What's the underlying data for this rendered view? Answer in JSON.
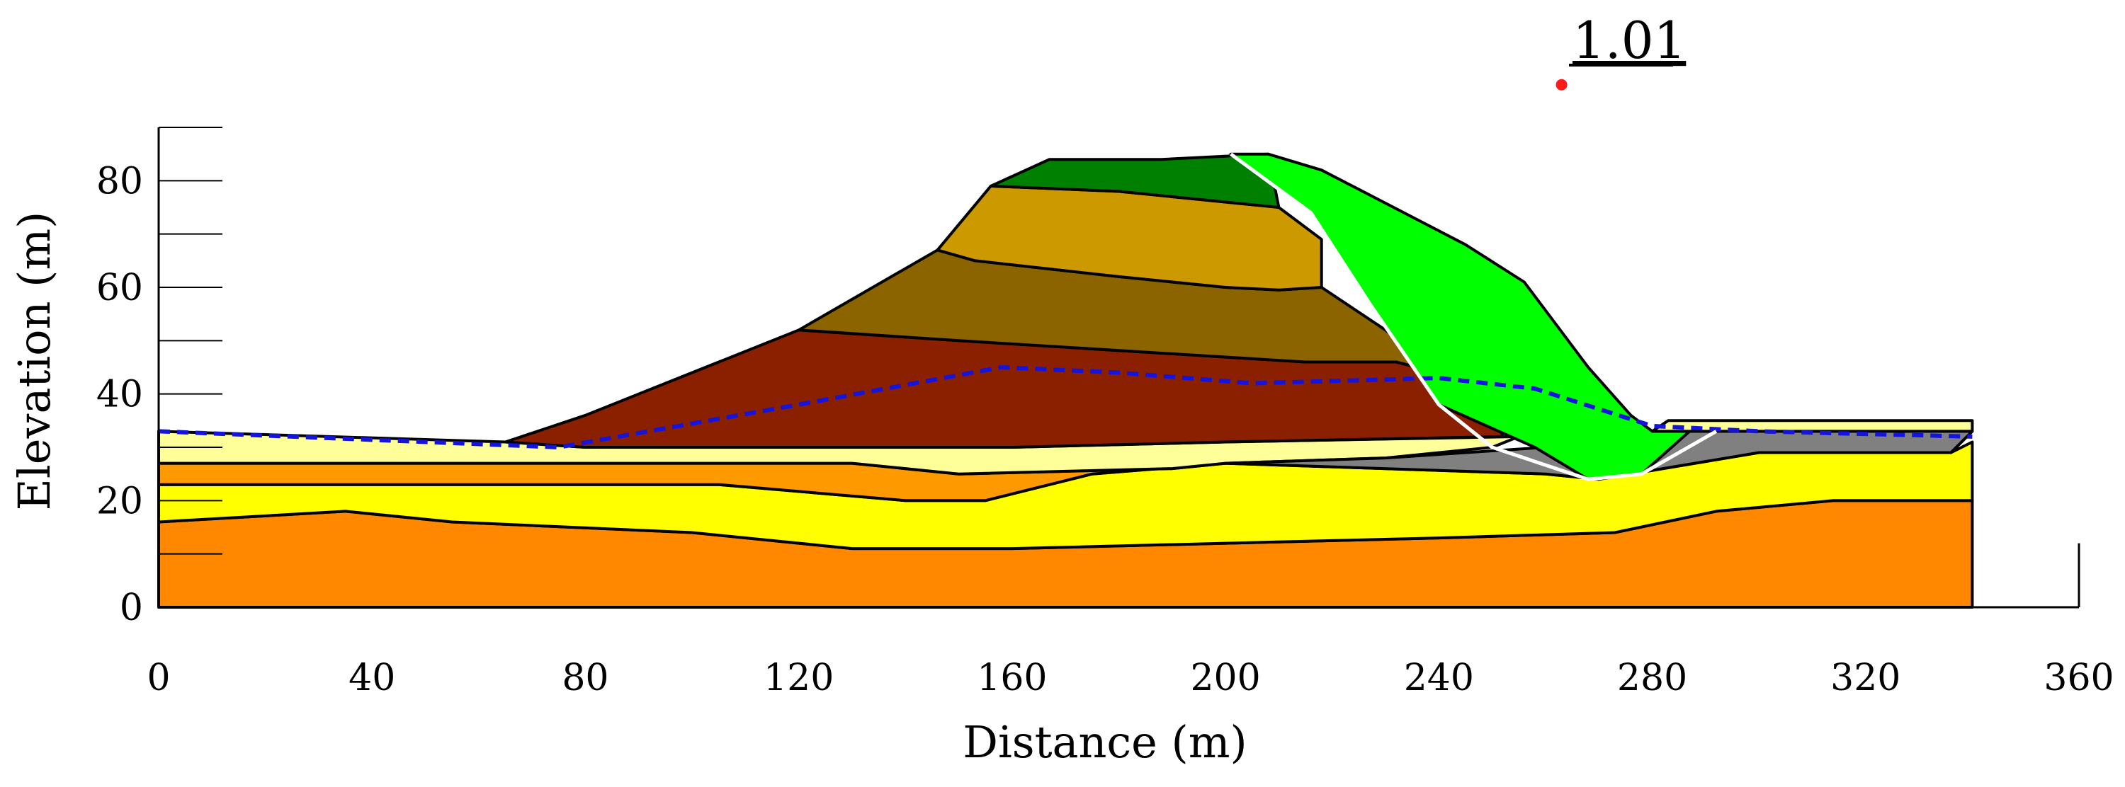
{
  "chart_data": {
    "type": "cross-section",
    "xlabel": "Distance (m)",
    "ylabel": "Elevation (m)",
    "xlim": [
      0,
      360
    ],
    "ylim": [
      0,
      90
    ],
    "x_ticks": [
      0,
      40,
      80,
      120,
      160,
      200,
      240,
      280,
      320,
      360
    ],
    "y_ticks": [
      0,
      20,
      40,
      60,
      80
    ],
    "factor_of_safety": {
      "label": "1.01",
      "center": [
        263,
        98
      ],
      "color": "#ff1a1a"
    },
    "layers": [
      {
        "name": "foundation-bottom",
        "color": "#ff8800",
        "points": [
          [
            0,
            0
          ],
          [
            340,
            0
          ],
          [
            340,
            20
          ],
          [
            314,
            20
          ],
          [
            292,
            18
          ],
          [
            273,
            14
          ],
          [
            240,
            13
          ],
          [
            200,
            12
          ],
          [
            160,
            11
          ],
          [
            130,
            11
          ],
          [
            100,
            14
          ],
          [
            55,
            16
          ],
          [
            35,
            18
          ],
          [
            0,
            16
          ]
        ]
      },
      {
        "name": "yellow",
        "color": "#ffff00",
        "points": [
          [
            0,
            16
          ],
          [
            35,
            18
          ],
          [
            55,
            16
          ],
          [
            100,
            14
          ],
          [
            130,
            11
          ],
          [
            160,
            11
          ],
          [
            200,
            12
          ],
          [
            240,
            13
          ],
          [
            273,
            14
          ],
          [
            292,
            18
          ],
          [
            314,
            20
          ],
          [
            340,
            20
          ],
          [
            340,
            31
          ],
          [
            336,
            29
          ],
          [
            300,
            29
          ],
          [
            270,
            24
          ],
          [
            260,
            25
          ],
          [
            200,
            27
          ],
          [
            175,
            25
          ],
          [
            155,
            20
          ],
          [
            140,
            20
          ],
          [
            105,
            23
          ],
          [
            0,
            23
          ]
        ]
      },
      {
        "name": "orange-lens",
        "color": "#ff9900",
        "points": [
          [
            0,
            23
          ],
          [
            105,
            23
          ],
          [
            140,
            20
          ],
          [
            155,
            20
          ],
          [
            175,
            25
          ],
          [
            200,
            27
          ],
          [
            190,
            26
          ],
          [
            150,
            25
          ],
          [
            130,
            27
          ],
          [
            0,
            27
          ]
        ]
      },
      {
        "name": "light-yellow",
        "color": "#ffff99",
        "points": [
          [
            0,
            27
          ],
          [
            130,
            27
          ],
          [
            150,
            25
          ],
          [
            190,
            26
          ],
          [
            200,
            27
          ],
          [
            230,
            28
          ],
          [
            250,
            30
          ],
          [
            255,
            32
          ],
          [
            200,
            31
          ],
          [
            160,
            30
          ],
          [
            120,
            30
          ],
          [
            80,
            30
          ],
          [
            65,
            31
          ],
          [
            0,
            33
          ]
        ]
      },
      {
        "name": "gray-lens",
        "color": "#808080",
        "points": [
          [
            200,
            27
          ],
          [
            230,
            28
          ],
          [
            260,
            30
          ],
          [
            287,
            33
          ],
          [
            300,
            33
          ],
          [
            340,
            33
          ],
          [
            336,
            29
          ],
          [
            300,
            29
          ],
          [
            270,
            24
          ],
          [
            260,
            25
          ]
        ]
      },
      {
        "name": "red-brown",
        "color": "#8b2000",
        "points": [
          [
            65,
            31
          ],
          [
            80,
            36
          ],
          [
            120,
            52
          ],
          [
            150,
            50
          ],
          [
            215,
            46
          ],
          [
            232,
            46
          ],
          [
            248,
            42
          ],
          [
            252,
            32
          ],
          [
            200,
            31
          ],
          [
            160,
            30
          ],
          [
            120,
            30
          ],
          [
            80,
            30
          ]
        ]
      },
      {
        "name": "olive-brown",
        "color": "#8b6400",
        "points": [
          [
            120,
            52
          ],
          [
            146,
            67
          ],
          [
            153,
            65
          ],
          [
            180,
            62
          ],
          [
            200,
            60
          ],
          [
            210,
            59.5
          ],
          [
            218,
            60
          ],
          [
            230,
            52
          ],
          [
            240,
            44
          ],
          [
            232,
            46
          ],
          [
            215,
            46
          ],
          [
            150,
            50
          ]
        ]
      },
      {
        "name": "tan",
        "color": "#cc9900",
        "points": [
          [
            146,
            67
          ],
          [
            156,
            79
          ],
          [
            180,
            78
          ],
          [
            200,
            76
          ],
          [
            210,
            75
          ],
          [
            218,
            69
          ],
          [
            218,
            60
          ],
          [
            210,
            59.5
          ],
          [
            200,
            60
          ],
          [
            180,
            62
          ],
          [
            153,
            65
          ]
        ]
      },
      {
        "name": "dark-green",
        "color": "#008000",
        "points": [
          [
            156,
            79
          ],
          [
            167,
            84
          ],
          [
            188,
            84
          ],
          [
            208,
            85
          ],
          [
            210,
            75
          ],
          [
            200,
            76
          ],
          [
            180,
            78
          ]
        ]
      },
      {
        "name": "failure-mass",
        "color": "#00ff00",
        "points": [
          [
            201,
            85
          ],
          [
            208,
            85
          ],
          [
            218,
            82
          ],
          [
            245,
            68
          ],
          [
            256,
            61
          ],
          [
            262,
            53
          ],
          [
            268,
            45
          ],
          [
            276,
            36
          ],
          [
            280,
            33
          ],
          [
            291,
            33
          ],
          [
            287,
            33
          ],
          [
            278,
            25
          ],
          [
            268,
            24
          ],
          [
            258,
            30
          ],
          [
            240,
            38
          ],
          [
            227,
            57
          ],
          [
            216,
            74
          ]
        ]
      },
      {
        "name": "right-embankment",
        "color": "#ffff99",
        "points": [
          [
            280,
            33
          ],
          [
            340,
            33
          ],
          [
            340,
            35
          ],
          [
            283,
            35
          ]
        ]
      }
    ],
    "slip_surface": {
      "color": "#ffffff",
      "points": [
        [
          201,
          85
        ],
        [
          216,
          74
        ],
        [
          227,
          57
        ],
        [
          240,
          38
        ],
        [
          250,
          30
        ],
        [
          268,
          24
        ],
        [
          278,
          25
        ],
        [
          292,
          33
        ]
      ]
    },
    "phreatic_line": {
      "color": "#1414dc",
      "points": [
        [
          0,
          33
        ],
        [
          25,
          32
        ],
        [
          75,
          30
        ],
        [
          120,
          38
        ],
        [
          158,
          45
        ],
        [
          180,
          44
        ],
        [
          205,
          42
        ],
        [
          240,
          43
        ],
        [
          258,
          41
        ],
        [
          280,
          34
        ],
        [
          300,
          33
        ],
        [
          340,
          32
        ]
      ]
    }
  }
}
